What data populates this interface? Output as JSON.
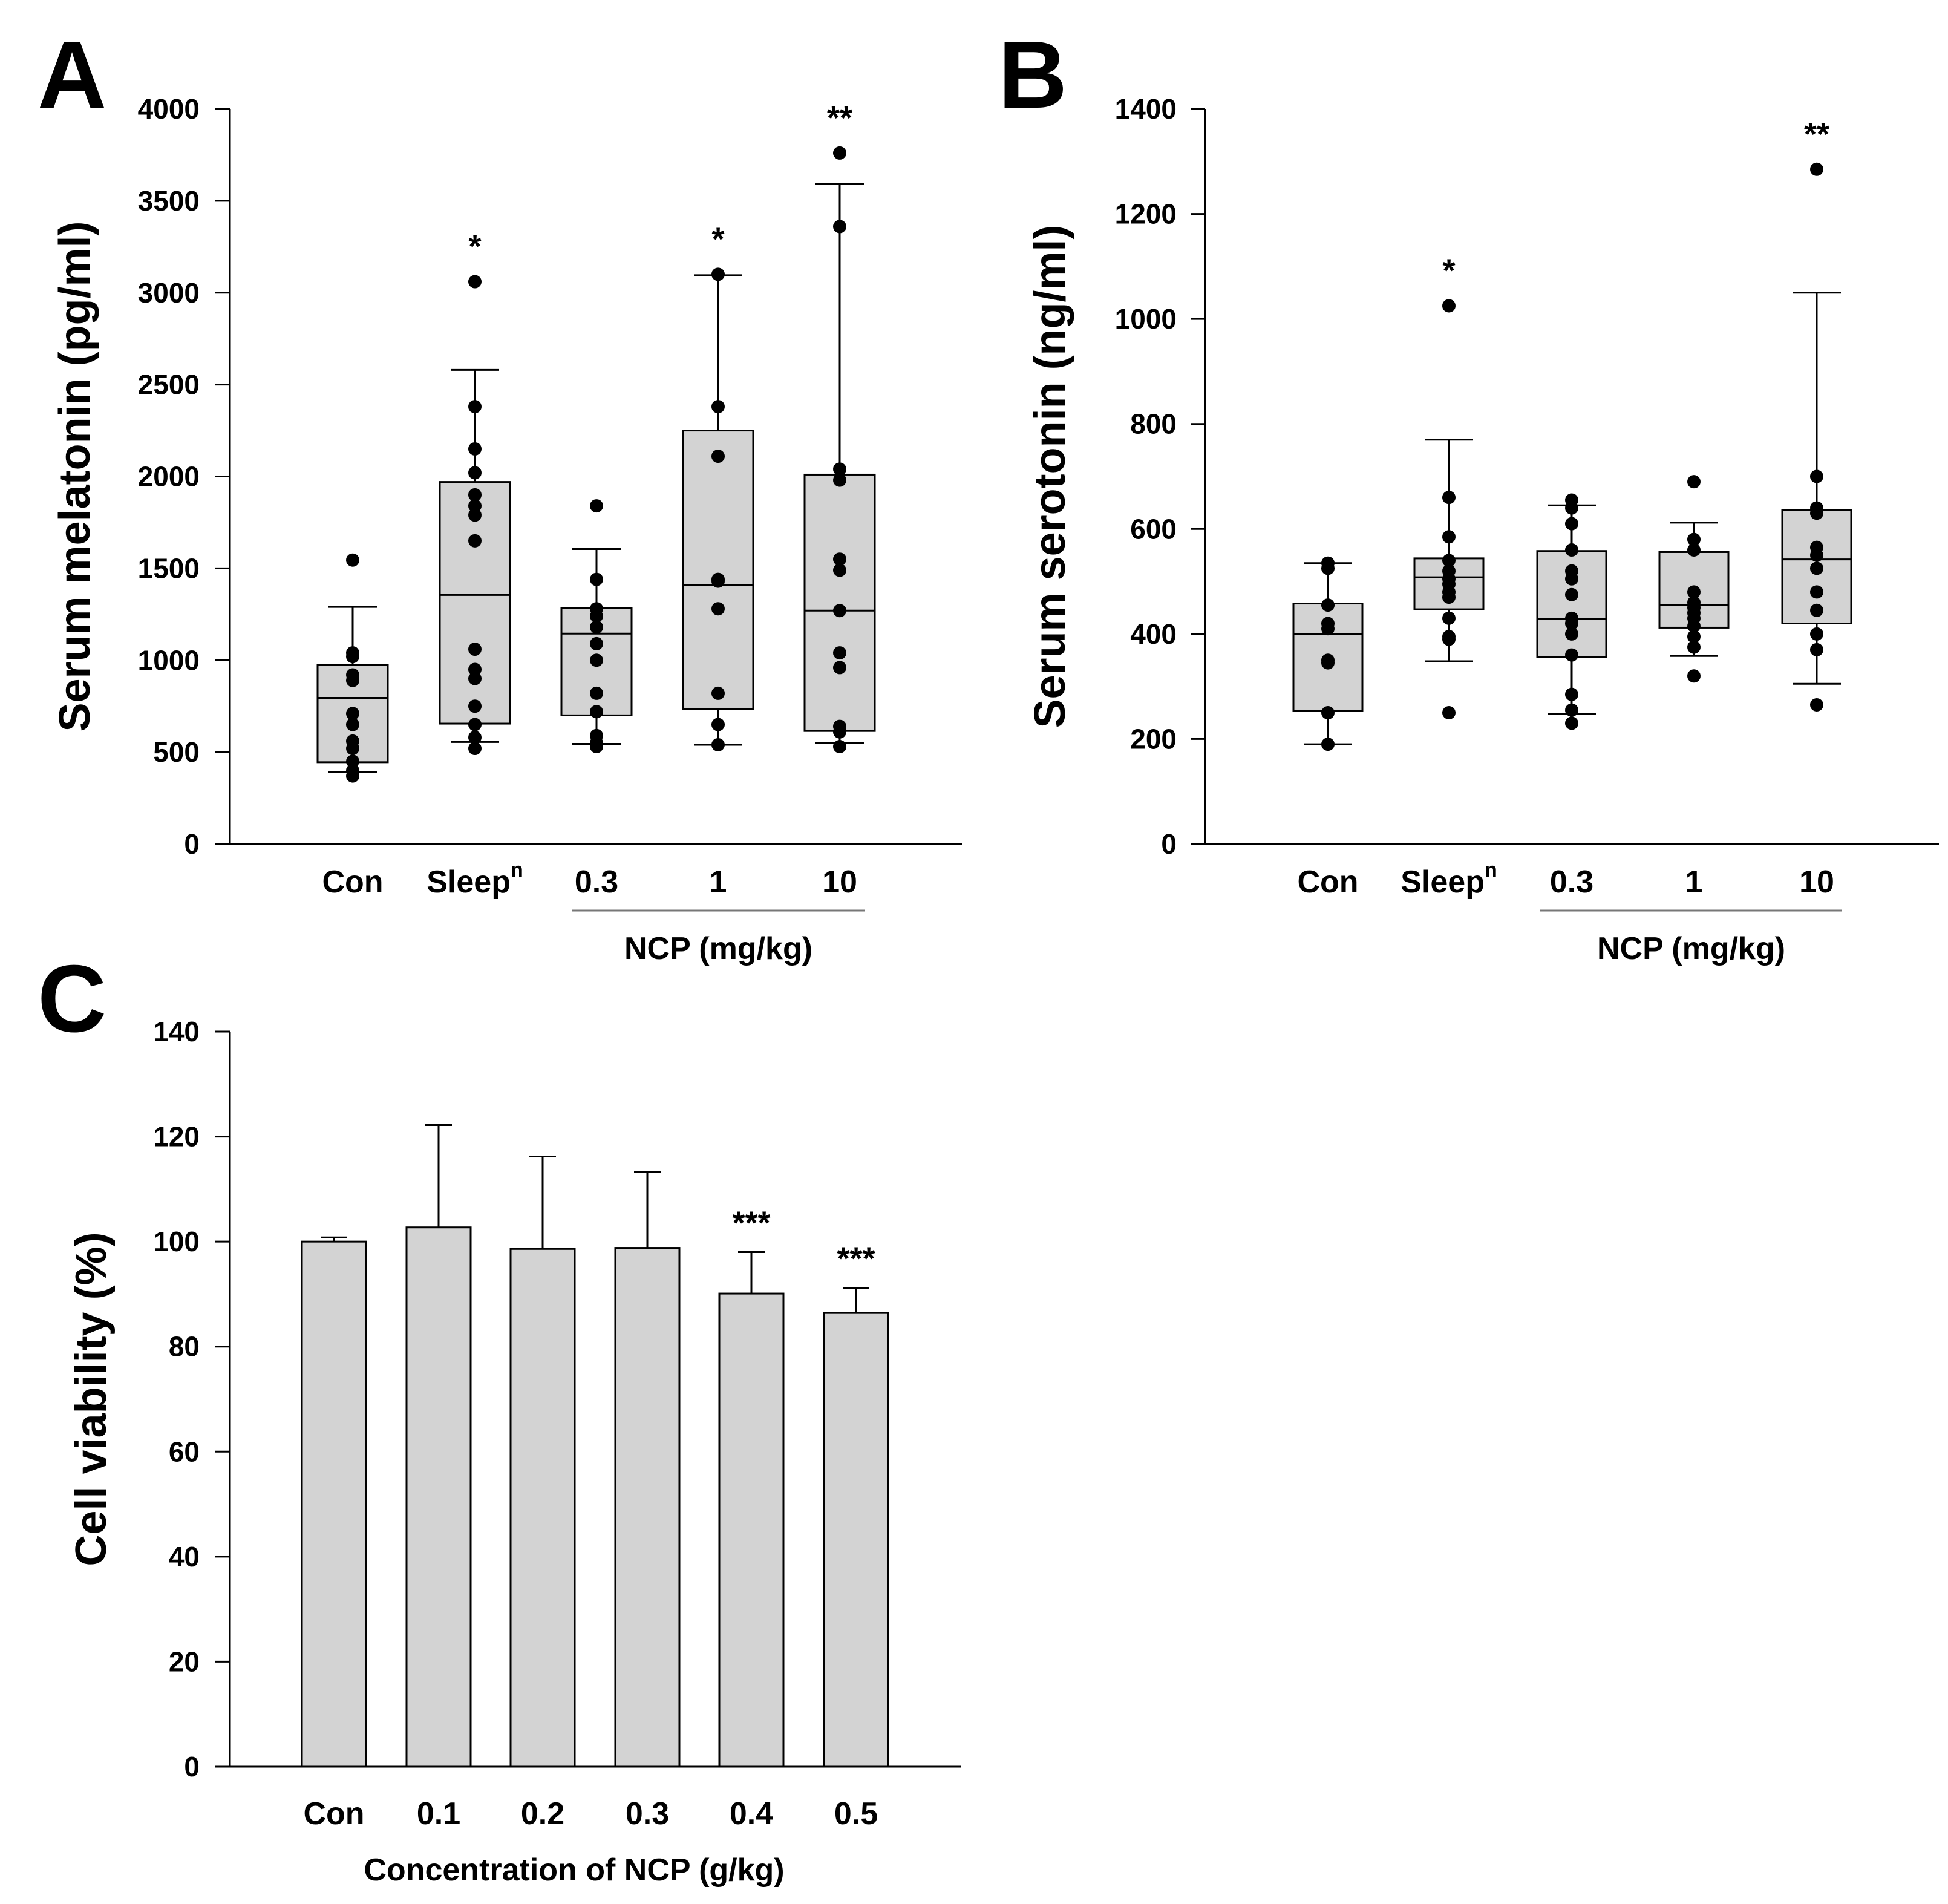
{
  "chart_data": [
    {
      "panel": "A",
      "type": "box",
      "ylabel": "Serum melatonin (pg/ml)",
      "ylim": [
        0,
        4000
      ],
      "yticks": [
        0,
        500,
        1000,
        1500,
        2000,
        2500,
        3000,
        3500,
        4000
      ],
      "categories": [
        "Con",
        "Sleep",
        "0.3",
        "1",
        "10"
      ],
      "category_superscripts": [
        "",
        "n",
        "",
        "",
        ""
      ],
      "group_label": "NCP (mg/kg)",
      "group_range": [
        2,
        4
      ],
      "boxes": [
        {
          "category": "Con",
          "whisker_low": 390,
          "q1": 445,
          "median": 795,
          "q3": 975,
          "whisker_high": 1290,
          "points": [
            1545,
            1040,
            1020,
            920,
            890,
            710,
            650,
            560,
            520,
            450,
            400,
            370
          ]
        },
        {
          "category": "Sleep",
          "whisker_low": 555,
          "q1": 655,
          "median": 1355,
          "q3": 1970,
          "whisker_high": 2580,
          "points": [
            3060,
            2380,
            2150,
            2020,
            1900,
            1840,
            1790,
            1650,
            1060,
            950,
            900,
            750,
            650,
            580,
            520
          ]
        },
        {
          "category": "0.3",
          "whisker_low": 545,
          "q1": 700,
          "median": 1145,
          "q3": 1285,
          "whisker_high": 1605,
          "points": [
            1840,
            1440,
            1280,
            1240,
            1180,
            1090,
            1000,
            820,
            720,
            590,
            550,
            530
          ]
        },
        {
          "category": "1",
          "whisker_low": 540,
          "q1": 735,
          "median": 1410,
          "q3": 2250,
          "whisker_high": 3095,
          "points": [
            3100,
            2380,
            2110,
            1440,
            1430,
            1280,
            820,
            650,
            540
          ]
        },
        {
          "category": "10",
          "whisker_low": 550,
          "q1": 615,
          "median": 1270,
          "q3": 2010,
          "whisker_high": 3590,
          "points": [
            3760,
            3360,
            2040,
            1980,
            1550,
            1490,
            1270,
            1040,
            960,
            640,
            610,
            530
          ]
        }
      ],
      "significance": [
        "",
        "*",
        "",
        "*",
        "**"
      ]
    },
    {
      "panel": "B",
      "type": "box",
      "ylabel": "Serum serotonin (ng/ml)",
      "ylim": [
        0,
        1400
      ],
      "yticks": [
        0,
        200,
        400,
        600,
        800,
        1000,
        1200,
        1400
      ],
      "categories": [
        "Con",
        "Sleep",
        "0.3",
        "1",
        "10"
      ],
      "category_superscripts": [
        "",
        "n",
        "",
        "",
        ""
      ],
      "group_label": "NCP (mg/kg)",
      "group_range": [
        2,
        4
      ],
      "boxes": [
        {
          "category": "Con",
          "whisker_low": 190,
          "q1": 253,
          "median": 400,
          "q3": 458,
          "whisker_high": 535,
          "points": [
            535,
            525,
            455,
            420,
            410,
            350,
            345,
            250,
            190
          ]
        },
        {
          "category": "Sleep",
          "whisker_low": 348,
          "q1": 447,
          "median": 508,
          "q3": 544,
          "whisker_high": 770,
          "points": [
            1025,
            660,
            585,
            540,
            520,
            505,
            495,
            480,
            470,
            430,
            395,
            390,
            250
          ]
        },
        {
          "category": "0.3",
          "whisker_low": 248,
          "q1": 356,
          "median": 428,
          "q3": 558,
          "whisker_high": 645,
          "points": [
            655,
            640,
            610,
            560,
            520,
            505,
            475,
            430,
            420,
            400,
            360,
            285,
            255,
            230
          ]
        },
        {
          "category": "1",
          "whisker_low": 358,
          "q1": 412,
          "median": 455,
          "q3": 556,
          "whisker_high": 612,
          "points": [
            690,
            580,
            560,
            480,
            460,
            450,
            440,
            430,
            415,
            395,
            375,
            320
          ]
        },
        {
          "category": "10",
          "whisker_low": 305,
          "q1": 420,
          "median": 542,
          "q3": 636,
          "whisker_high": 1050,
          "points": [
            1285,
            700,
            640,
            630,
            565,
            550,
            525,
            480,
            445,
            400,
            370,
            265
          ]
        }
      ],
      "significance": [
        "",
        "*",
        "",
        "",
        "**"
      ]
    },
    {
      "panel": "C",
      "type": "bar",
      "xlabel": "Concentration of NCP (g/kg)",
      "ylabel": "Cell viability (%)",
      "ylim": [
        0,
        140
      ],
      "yticks": [
        0,
        20,
        40,
        60,
        80,
        100,
        120,
        140
      ],
      "categories": [
        "Con",
        "0.1",
        "0.2",
        "0.3",
        "0.4",
        "0.5"
      ],
      "values": [
        100,
        102.7,
        98.6,
        98.8,
        90.1,
        86.4
      ],
      "errors": [
        0.8,
        19.5,
        17.6,
        14.5,
        7.9,
        4.8
      ],
      "significance": [
        "",
        "",
        "",
        "",
        "***",
        "***"
      ]
    }
  ]
}
